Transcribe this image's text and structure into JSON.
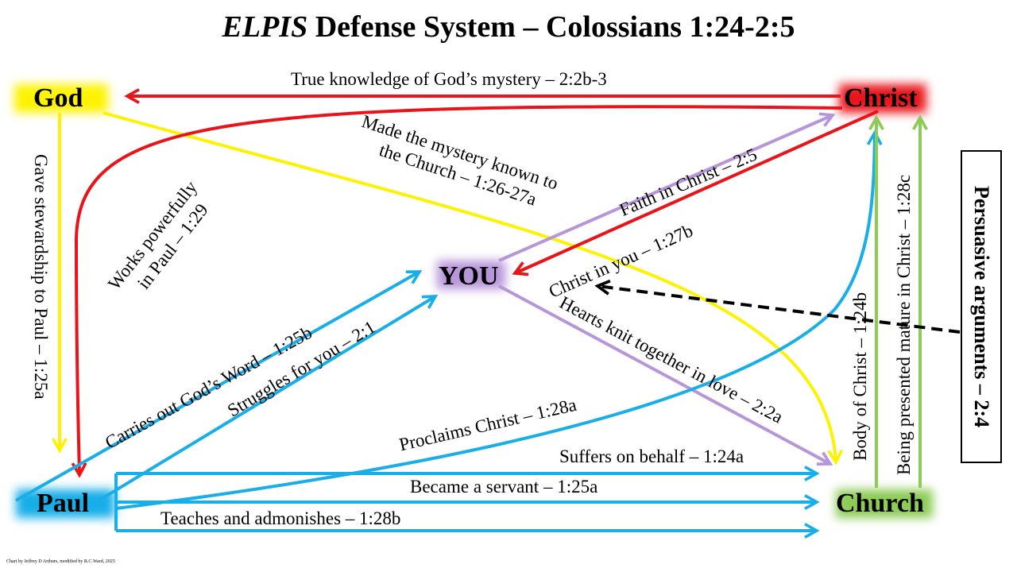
{
  "title": {
    "italic": "ELPIS",
    "rest": " Defense System – Colossians 1:24-2:5"
  },
  "nodes": {
    "god": "God",
    "christ": "Christ",
    "you": "YOU",
    "paul": "Paul",
    "church": "Church"
  },
  "labels": {
    "true_knowledge": "True knowledge of God’s mystery – 2:2b-3",
    "made_mystery_1": "Made the mystery known to",
    "made_mystery_2": "the Church – 1:26-27a",
    "works_1": "Works powerfully",
    "works_2": "in Paul – 1:29",
    "stewardship": "Gave stewardship to Paul – 1:25a",
    "faith": "Faith in Christ – 2:5",
    "christ_in_you": "Christ in you – 1:27b",
    "hearts": "Hearts knit together in love – 2:2a",
    "carries": "Carries out God’s Word – 1:25b",
    "struggles": "Struggles for you – 2:1",
    "proclaims": "Proclaims Christ – 1:28a",
    "suffers": "Suffers on behalf – 1:24a",
    "servant": "Became a servant – 1:25a",
    "teaches": "Teaches and admonishes – 1:28b",
    "body": "Body of Christ – 1:24b",
    "presented": "Being presented mature in Christ – 1:28c",
    "persuasive": "Persuasive arguments – 2:4"
  },
  "credit": "Chart by Jeffrey D Arthurs, modified by R.C.Ward, 2025",
  "colors": {
    "red": "#e8141a",
    "yellow": "#fdf300",
    "purple": "#b795d9",
    "blue": "#19aee8",
    "green": "#8ccb57",
    "black": "#000000"
  }
}
